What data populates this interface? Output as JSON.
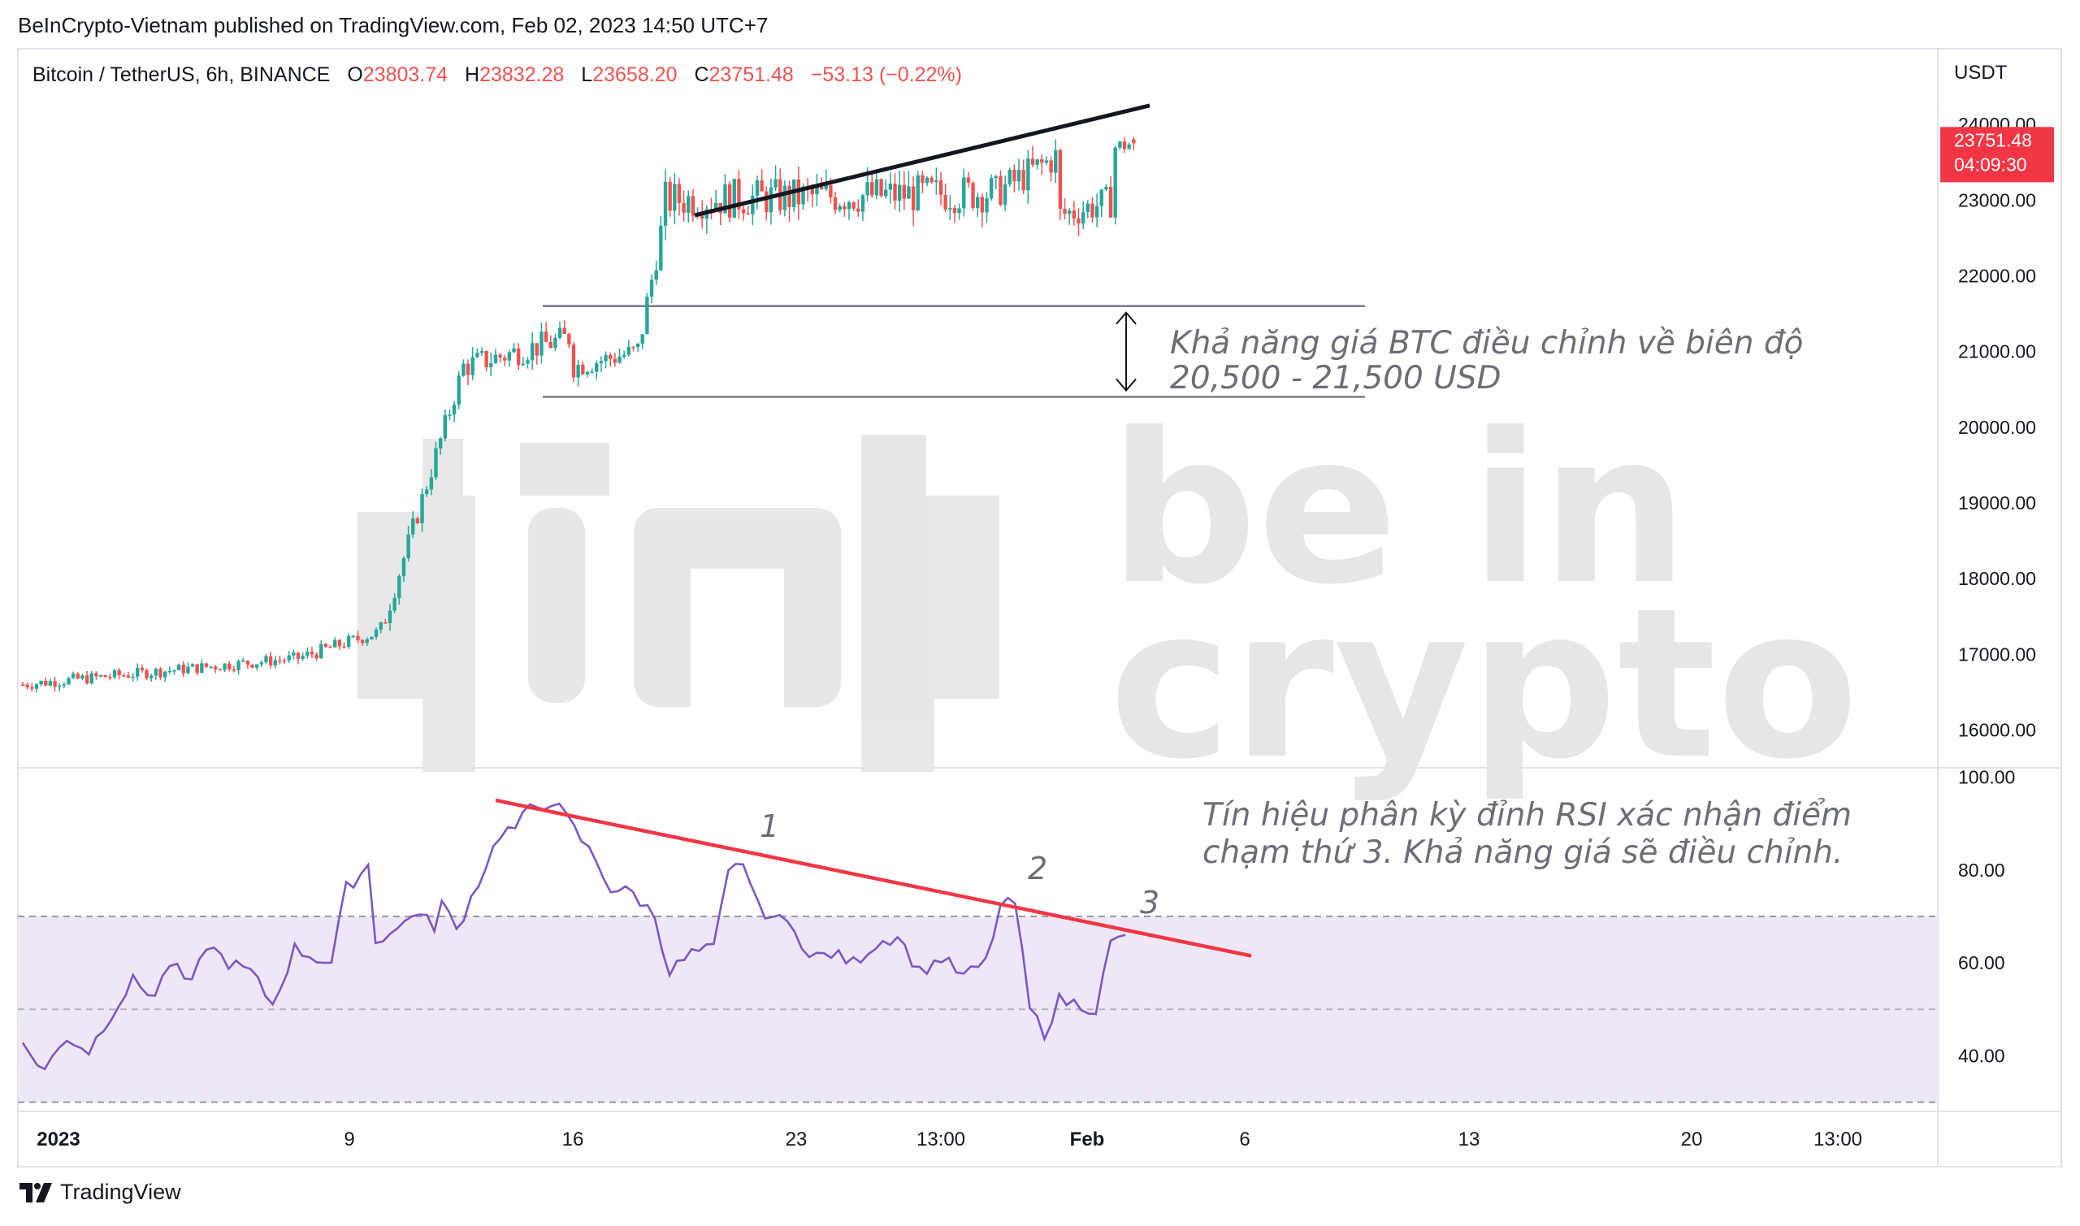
{
  "publisher_line": "BeInCrypto-Vietnam published on TradingView.com, Feb 02, 2023 14:50 UTC+7",
  "legend": {
    "symbol": "Bitcoin / TetherUS, 6h, BINANCE",
    "open_key": "O",
    "open": "23803.74",
    "high_key": "H",
    "high": "23832.28",
    "low_key": "L",
    "low": "23658.20",
    "close_key": "C",
    "close": "23751.48",
    "change": "−53.13 (−0.22%)"
  },
  "currency": "USDT",
  "last_price_label": {
    "price": "23751.48",
    "countdown": "04:09:30",
    "color": "#f23645"
  },
  "watermark": {
    "line1": "be in",
    "line2": "crypto"
  },
  "annotations": {
    "price_box_text_1": "Khả năng giá BTC điều chỉnh về biên độ",
    "price_box_text_2": "20,500 - 21,500 USD",
    "rsi_text_1": "Tín hiệu phân kỳ đỉnh RSI xác nhận điểm",
    "rsi_text_2": "chạm thứ 3. Khả năng giá sẽ điều chỉnh.",
    "touch_1": "1",
    "touch_2": "2",
    "touch_3": "3"
  },
  "brand": "TradingView",
  "colors": {
    "up": "#26a69a",
    "down": "#ef5350",
    "rsi": "#7e57c2",
    "rsi_band": "#ede7f6",
    "resistance": "#f23645",
    "trendline": "#131722"
  },
  "chart_data": [
    {
      "type": "candlestick",
      "title": "Bitcoin / TetherUS, 6h, BINANCE",
      "ylim": [
        15500,
        25000
      ],
      "y_ticks": [
        "24000.00",
        "23000.00",
        "22000.00",
        "21000.00",
        "20000.00",
        "19000.00",
        "18000.00",
        "17000.00",
        "16000.00"
      ],
      "x_ticks": [
        "2023",
        "9",
        "16",
        "23",
        "13:00",
        "Feb",
        "6",
        "13",
        "20",
        "13:00"
      ],
      "trend_phases": [
        {
          "x_start": 0,
          "x_end": 60,
          "y_start": 16600,
          "y_end": 16950,
          "noise": 80
        },
        {
          "x_start": 60,
          "x_end": 78,
          "y_start": 16950,
          "y_end": 17300,
          "noise": 90
        },
        {
          "x_start": 78,
          "x_end": 96,
          "y_start": 17300,
          "y_end": 20800,
          "noise": 150
        },
        {
          "x_start": 96,
          "x_end": 120,
          "y_start": 20800,
          "y_end": 21200,
          "noise": 180
        },
        {
          "x_start": 120,
          "x_end": 134,
          "y_start": 20800,
          "y_end": 21000,
          "noise": 160
        },
        {
          "x_start": 134,
          "x_end": 140,
          "y_start": 21000,
          "y_end": 22900,
          "noise": 200
        },
        {
          "x_start": 140,
          "x_end": 212,
          "y_start": 23000,
          "y_end": 23100,
          "noise": 260
        },
        {
          "x_start": 212,
          "x_end": 226,
          "y_start": 23100,
          "y_end": 23600,
          "noise": 230
        },
        {
          "x_start": 226,
          "x_end": 238,
          "y_start": 22800,
          "y_end": 23000,
          "noise": 220
        },
        {
          "x_start": 238,
          "x_end": 242,
          "y_start": 23700,
          "y_end": 23750,
          "noise": 120
        }
      ],
      "last": {
        "open": 23803.74,
        "high": 23832.28,
        "low": 23658.2,
        "close": 23751.48
      },
      "range_box": {
        "upper": 21600,
        "lower": 20400
      },
      "trendline": {
        "y_start": 22800,
        "y_end": 24250
      }
    },
    {
      "type": "line",
      "title": "RSI",
      "ylim": [
        28,
        102
      ],
      "y_ticks": [
        "100.00",
        "80.00",
        "60.00",
        "40.00"
      ],
      "bands": {
        "upper": 70,
        "middle": 50,
        "lower": 30
      },
      "rsi_points": [
        [
          0,
          42
        ],
        [
          6,
          37
        ],
        [
          12,
          44
        ],
        [
          18,
          41
        ],
        [
          24,
          49
        ],
        [
          30,
          56
        ],
        [
          36,
          53
        ],
        [
          40,
          60
        ],
        [
          46,
          55
        ],
        [
          50,
          64
        ],
        [
          56,
          60
        ],
        [
          62,
          58
        ],
        [
          68,
          51
        ],
        [
          74,
          63
        ],
        [
          80,
          61
        ],
        [
          84,
          60
        ],
        [
          88,
          76
        ],
        [
          94,
          81
        ],
        [
          96,
          65
        ],
        [
          102,
          67
        ],
        [
          106,
          71
        ],
        [
          112,
          68
        ],
        [
          114,
          73
        ],
        [
          118,
          67
        ],
        [
          126,
          81
        ],
        [
          130,
          88
        ],
        [
          134,
          89
        ],
        [
          138,
          93
        ],
        [
          144,
          95
        ],
        [
          148,
          91
        ],
        [
          156,
          82
        ],
        [
          160,
          76
        ],
        [
          166,
          75
        ],
        [
          172,
          70
        ],
        [
          176,
          58
        ],
        [
          182,
          62
        ],
        [
          188,
          63
        ],
        [
          192,
          79
        ],
        [
          196,
          82
        ],
        [
          200,
          72
        ],
        [
          206,
          69
        ],
        [
          210,
          68
        ],
        [
          214,
          61
        ],
        [
          220,
          62
        ],
        [
          226,
          60
        ],
        [
          232,
          64
        ],
        [
          238,
          66
        ],
        [
          244,
          58
        ],
        [
          250,
          61
        ],
        [
          256,
          57
        ],
        [
          262,
          60
        ],
        [
          266,
          72
        ],
        [
          270,
          73
        ],
        [
          274,
          50
        ],
        [
          278,
          45
        ],
        [
          282,
          52
        ],
        [
          288,
          51
        ],
        [
          292,
          50
        ],
        [
          296,
          64
        ],
        [
          300,
          66
        ]
      ],
      "resistance": {
        "y_start": 95,
        "y_end": 61.5
      }
    }
  ]
}
